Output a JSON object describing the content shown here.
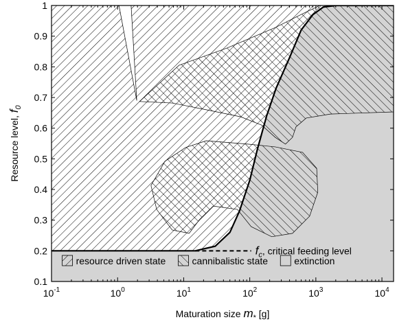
{
  "chart_data": {
    "type": "region",
    "xlabel": {
      "text": "Maturation size ",
      "symbol": "m",
      "subscript": "*",
      "unit": " [g]"
    },
    "ylabel": {
      "text": "Resource level, ",
      "symbol": "f",
      "subscript": "0"
    },
    "xscale": "log",
    "xlim": [
      0.1,
      15000
    ],
    "ylim": [
      0.1,
      1
    ],
    "xticks": [
      {
        "value": 0.1,
        "base": "10",
        "exponent": "-1"
      },
      {
        "value": 1,
        "base": "10",
        "exponent": "0"
      },
      {
        "value": 10,
        "base": "10",
        "exponent": "1"
      },
      {
        "value": 100,
        "base": "10",
        "exponent": "2"
      },
      {
        "value": 1000,
        "base": "10",
        "exponent": "3"
      },
      {
        "value": 10000,
        "base": "10",
        "exponent": "4"
      }
    ],
    "yticks": [
      0.1,
      0.2,
      0.3,
      0.4,
      0.5,
      0.6,
      0.7,
      0.8,
      0.9,
      1
    ],
    "grid": false,
    "legend": "lower center",
    "series": [
      {
        "name": "resource driven state",
        "color": "#000000",
        "hatch": "/",
        "x": [
          0.1,
          0.1,
          1.05,
          1.95,
          1.6,
          2000,
          1300,
          900,
          600,
          400,
          250,
          180,
          130,
          100,
          70,
          50,
          30,
          15
        ],
        "values": [
          0.2,
          1,
          1,
          0.69,
          1,
          1,
          0.995,
          0.97,
          0.92,
          0.83,
          0.73,
          0.64,
          0.53,
          0.43,
          0.33,
          0.26,
          0.215,
          0.2
        ]
      },
      {
        "name": "cannibalistic state",
        "color": "#000000",
        "hatch": "\\",
        "x": [
          2.15,
          8.5,
          45,
          243,
          630,
          1150,
          15000,
          15000,
          1660,
          715,
          500,
          443,
          347,
          243,
          151,
          73,
          22,
          6.7,
          null,
          22,
          93,
          243,
          630,
          1030,
          1070,
          805,
          443,
          215,
          105,
          65,
          28,
          17.4,
          12.1,
          6.7,
          3.9,
          3.2,
          5.2,
          10.7
        ],
        "values": [
          0.687,
          0.805,
          0.861,
          0.928,
          0.973,
          1,
          1,
          0.653,
          0.646,
          0.633,
          0.604,
          0.57,
          0.548,
          0.57,
          0.61,
          0.637,
          0.66,
          0.682,
          null,
          0.559,
          0.548,
          0.539,
          0.521,
          0.469,
          0.391,
          0.313,
          0.257,
          0.246,
          0.279,
          0.335,
          0.346,
          0.302,
          0.257,
          0.268,
          0.335,
          0.413,
          0.492,
          0.537
        ]
      },
      {
        "name": "extinction",
        "color": "#d4d4d4",
        "x": [
          0.1,
          0.1,
          15,
          30,
          50,
          70,
          100,
          130,
          180,
          250,
          400,
          600,
          900,
          1300,
          2000,
          15000,
          15000
        ],
        "values": [
          0.1,
          0.2,
          0.2,
          0.215,
          0.26,
          0.33,
          0.43,
          0.53,
          0.64,
          0.73,
          0.83,
          0.92,
          0.97,
          0.995,
          1,
          1,
          0.1
        ]
      }
    ],
    "curve": {
      "color": "#000000",
      "x": [
        0.1,
        15,
        30,
        50,
        70,
        100,
        130,
        180,
        250,
        400,
        600,
        900,
        1300,
        2000,
        15000
      ],
      "values": [
        0.2,
        0.2,
        0.215,
        0.26,
        0.33,
        0.43,
        0.53,
        0.64,
        0.73,
        0.83,
        0.92,
        0.97,
        0.995,
        1,
        1
      ]
    },
    "fc": {
      "symbol": "f",
      "subscript": "c",
      "text": ", critical feeding level",
      "y": 0.2,
      "x": [
        15,
        105
      ]
    }
  }
}
